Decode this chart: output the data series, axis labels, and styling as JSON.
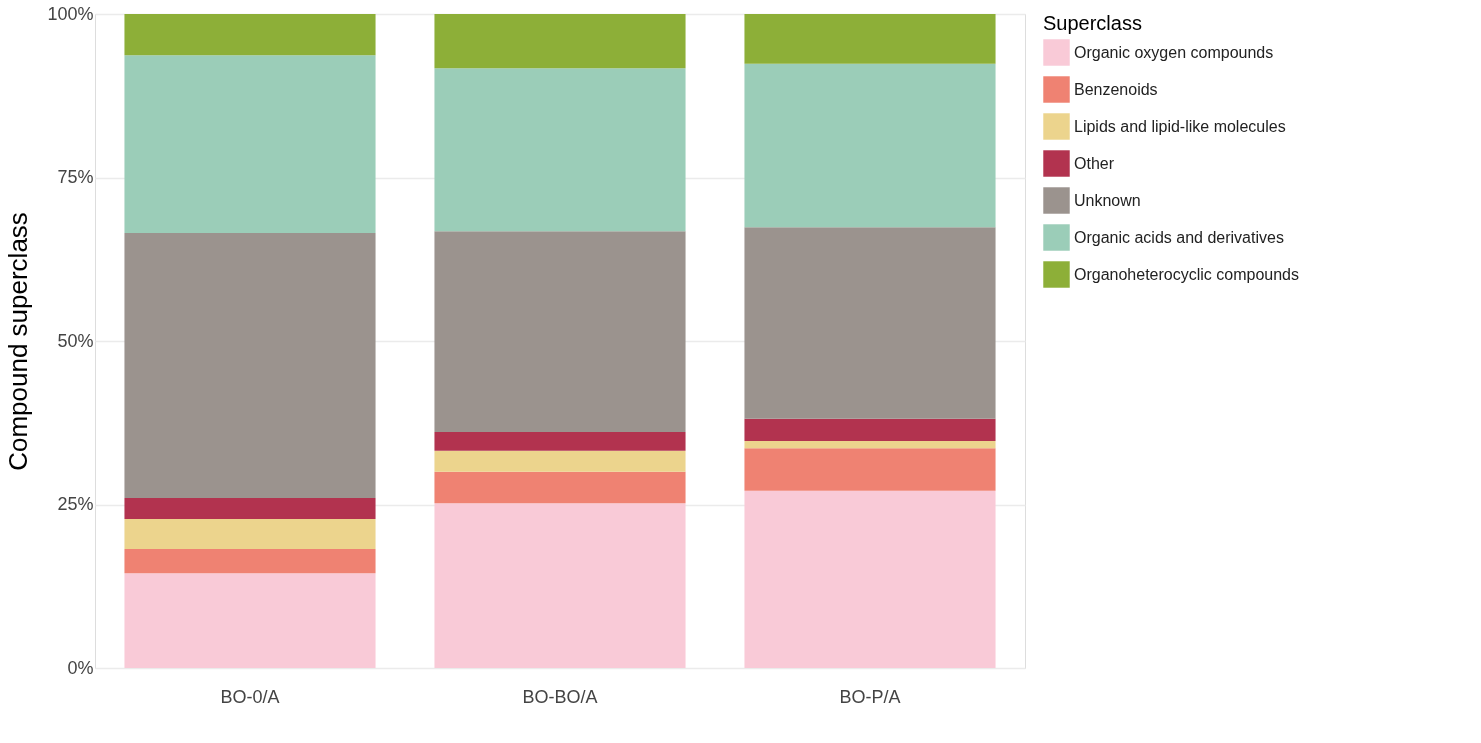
{
  "chart_data": {
    "type": "bar",
    "stacked": true,
    "ylabel": "Compound superclass",
    "legend_title": "Superclass",
    "legend": "right",
    "grid": "y",
    "categories": [
      "BO-0/A",
      "BO-BO/A",
      "BO-P/A"
    ],
    "ylim": [
      0,
      100
    ],
    "yticks": [
      {
        "value": 0,
        "label": "0%"
      },
      {
        "value": 25,
        "label": "25%"
      },
      {
        "value": 50,
        "label": "50%"
      },
      {
        "value": 75,
        "label": "75%"
      },
      {
        "value": 100,
        "label": "100%"
      }
    ],
    "series": [
      {
        "name": "Organic oxygen compounds",
        "color": "#f9cad7",
        "values": [
          14.5,
          25.2,
          27.1
        ]
      },
      {
        "name": "Benzenoids",
        "color": "#ef8272",
        "values": [
          3.7,
          4.8,
          6.5
        ]
      },
      {
        "name": "Lipids and lipid-like molecules",
        "color": "#ecd48d",
        "values": [
          4.6,
          3.2,
          1.1
        ]
      },
      {
        "name": "Other",
        "color": "#b2334f",
        "values": [
          3.2,
          2.9,
          3.4
        ]
      },
      {
        "name": "Unknown",
        "color": "#9b938e",
        "values": [
          40.5,
          30.7,
          29.3
        ]
      },
      {
        "name": "Organic acids and derivatives",
        "color": "#9bcdb8",
        "values": [
          27.2,
          24.9,
          25.0
        ]
      },
      {
        "name": "Organoheterocyclic compounds",
        "color": "#8daf38",
        "values": [
          6.3,
          8.3,
          7.6
        ]
      }
    ]
  }
}
